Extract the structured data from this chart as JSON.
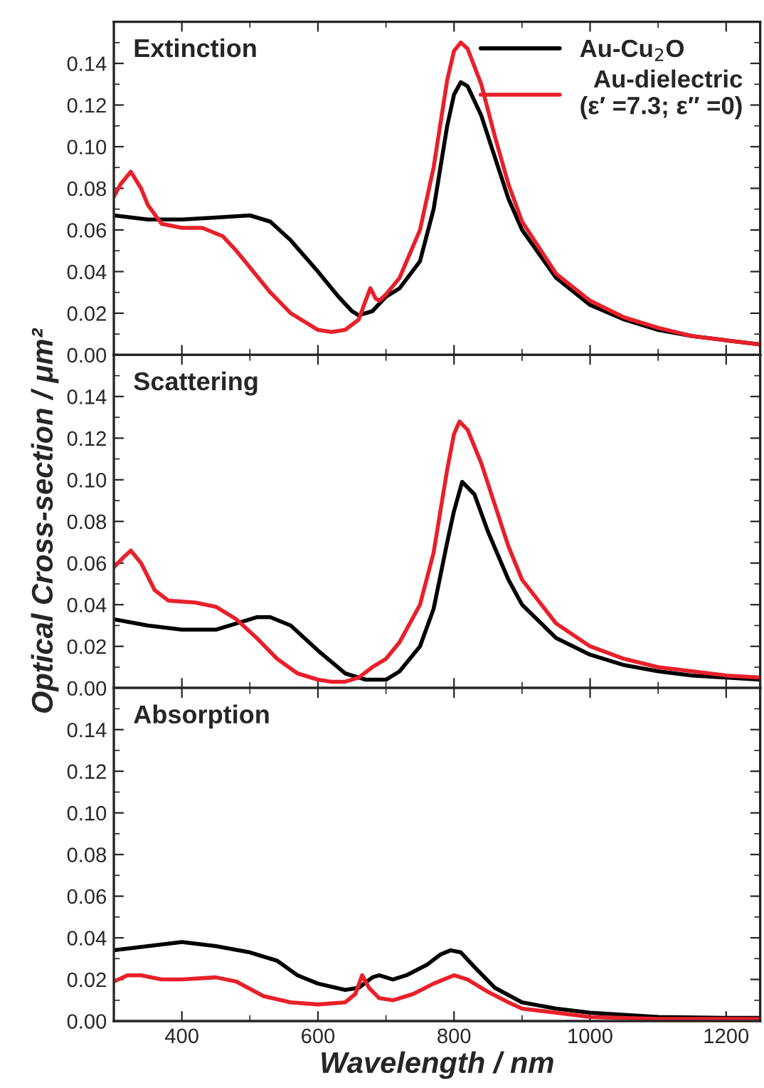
{
  "chart_data": [
    {
      "type": "line",
      "title": "Extinction",
      "xlim": [
        300,
        1250
      ],
      "xticks": [
        400,
        600,
        800,
        1000,
        1200
      ],
      "ylim": [
        0,
        0.16
      ],
      "yticks": [
        {
          "value": 0,
          "label": "0.00"
        },
        {
          "value": 0.02,
          "label": "0.02"
        },
        {
          "value": 0.04,
          "label": "0.04"
        },
        {
          "value": 0.06,
          "label": "0.06"
        },
        {
          "value": 0.08,
          "label": "0.08"
        },
        {
          "value": 0.1,
          "label": "0.10"
        },
        {
          "value": 0.12,
          "label": "0.12"
        },
        {
          "value": 0.14,
          "label": "0.14"
        }
      ],
      "tick_labels": "y",
      "grid": false,
      "legend": "top right",
      "line_style": "solid",
      "marker": "none",
      "series": [
        {
          "name": "Au-Cu$_{2}$O",
          "color": "#000000",
          "x": [
            300,
            350,
            400,
            450,
            500,
            530,
            560,
            600,
            630,
            650,
            660,
            680,
            700,
            720,
            750,
            770,
            790,
            800,
            810,
            820,
            840,
            860,
            880,
            900,
            950,
            1000,
            1050,
            1100,
            1150,
            1200,
            1250
          ],
          "values": [
            0.067,
            0.065,
            0.065,
            0.066,
            0.067,
            0.064,
            0.055,
            0.04,
            0.028,
            0.021,
            0.019,
            0.021,
            0.028,
            0.032,
            0.045,
            0.07,
            0.11,
            0.125,
            0.131,
            0.129,
            0.115,
            0.095,
            0.075,
            0.06,
            0.037,
            0.024,
            0.017,
            0.012,
            0.009,
            0.007,
            0.005
          ]
        },
        {
          "name": "Au-dielectric\n(ε′ =7.3; ε″ =0)",
          "color": "#e8202a",
          "x": [
            300,
            310,
            325,
            340,
            350,
            370,
            400,
            430,
            460,
            480,
            500,
            530,
            560,
            600,
            620,
            640,
            660,
            670,
            677,
            685,
            690,
            700,
            720,
            750,
            770,
            790,
            800,
            810,
            820,
            840,
            860,
            880,
            900,
            950,
            1000,
            1050,
            1100,
            1150,
            1200,
            1250
          ],
          "values": [
            0.076,
            0.082,
            0.088,
            0.08,
            0.072,
            0.063,
            0.061,
            0.061,
            0.057,
            0.05,
            0.042,
            0.03,
            0.02,
            0.012,
            0.011,
            0.012,
            0.017,
            0.026,
            0.032,
            0.027,
            0.026,
            0.029,
            0.037,
            0.06,
            0.09,
            0.132,
            0.146,
            0.15,
            0.147,
            0.13,
            0.105,
            0.082,
            0.064,
            0.039,
            0.026,
            0.018,
            0.013,
            0.009,
            0.007,
            0.005
          ]
        }
      ]
    },
    {
      "type": "line",
      "title": "Scattering",
      "ylabel": "Optical Cross-section / μm²",
      "xlim": [
        300,
        1250
      ],
      "xticks": [
        400,
        600,
        800,
        1000,
        1200
      ],
      "ylim": [
        0,
        0.16
      ],
      "yticks": [
        {
          "value": 0,
          "label": "0.00"
        },
        {
          "value": 0.02,
          "label": "0.02"
        },
        {
          "value": 0.04,
          "label": "0.04"
        },
        {
          "value": 0.06,
          "label": "0.06"
        },
        {
          "value": 0.08,
          "label": "0.08"
        },
        {
          "value": 0.1,
          "label": "0.10"
        },
        {
          "value": 0.12,
          "label": "0.12"
        },
        {
          "value": 0.14,
          "label": "0.14"
        }
      ],
      "tick_labels": "y",
      "grid": false,
      "line_style": "solid",
      "marker": "none",
      "series": [
        {
          "color": "#000000",
          "x": [
            300,
            350,
            400,
            450,
            480,
            510,
            530,
            560,
            600,
            640,
            670,
            700,
            720,
            750,
            770,
            790,
            800,
            812,
            830,
            850,
            880,
            900,
            950,
            1000,
            1050,
            1100,
            1150,
            1200,
            1250
          ],
          "values": [
            0.033,
            0.03,
            0.028,
            0.028,
            0.031,
            0.034,
            0.034,
            0.03,
            0.018,
            0.007,
            0.004,
            0.004,
            0.008,
            0.02,
            0.038,
            0.07,
            0.085,
            0.099,
            0.093,
            0.075,
            0.052,
            0.04,
            0.024,
            0.016,
            0.011,
            0.008,
            0.006,
            0.005,
            0.004
          ]
        },
        {
          "color": "#e8202a",
          "x": [
            300,
            315,
            325,
            340,
            360,
            380,
            420,
            450,
            480,
            510,
            540,
            570,
            600,
            620,
            640,
            660,
            680,
            700,
            720,
            750,
            770,
            790,
            800,
            808,
            820,
            840,
            860,
            880,
            900,
            950,
            1000,
            1050,
            1100,
            1150,
            1200,
            1250
          ],
          "values": [
            0.058,
            0.063,
            0.066,
            0.06,
            0.047,
            0.042,
            0.041,
            0.039,
            0.033,
            0.024,
            0.014,
            0.007,
            0.004,
            0.003,
            0.003,
            0.005,
            0.01,
            0.014,
            0.022,
            0.04,
            0.065,
            0.105,
            0.122,
            0.128,
            0.124,
            0.108,
            0.088,
            0.068,
            0.052,
            0.031,
            0.02,
            0.014,
            0.01,
            0.008,
            0.006,
            0.005
          ]
        }
      ]
    },
    {
      "type": "line",
      "title": "Absorption",
      "xlabel": "Wavelength / nm",
      "xlim": [
        300,
        1250
      ],
      "xticks": [
        400,
        600,
        800,
        1000,
        1200
      ],
      "ylim": [
        0,
        0.16
      ],
      "yticks": [
        {
          "value": 0,
          "label": "0.00"
        },
        {
          "value": 0.02,
          "label": "0.02"
        },
        {
          "value": 0.04,
          "label": "0.04"
        },
        {
          "value": 0.06,
          "label": "0.06"
        },
        {
          "value": 0.08,
          "label": "0.08"
        },
        {
          "value": 0.1,
          "label": "0.10"
        },
        {
          "value": 0.12,
          "label": "0.12"
        },
        {
          "value": 0.14,
          "label": "0.14"
        }
      ],
      "grid": false,
      "line_style": "solid",
      "marker": "none",
      "series": [
        {
          "color": "#000000",
          "x": [
            300,
            350,
            400,
            450,
            500,
            540,
            570,
            600,
            640,
            660,
            680,
            690,
            710,
            730,
            760,
            780,
            795,
            810,
            830,
            860,
            900,
            950,
            1000,
            1100,
            1200,
            1250
          ],
          "values": [
            0.034,
            0.036,
            0.038,
            0.036,
            0.033,
            0.029,
            0.022,
            0.018,
            0.015,
            0.016,
            0.021,
            0.022,
            0.02,
            0.022,
            0.027,
            0.032,
            0.034,
            0.033,
            0.026,
            0.016,
            0.009,
            0.006,
            0.004,
            0.002,
            0.0015,
            0.0015
          ]
        },
        {
          "color": "#e8202a",
          "x": [
            300,
            320,
            340,
            370,
            400,
            450,
            480,
            520,
            560,
            600,
            640,
            655,
            665,
            675,
            690,
            710,
            740,
            770,
            800,
            820,
            850,
            880,
            900,
            950,
            1000,
            1100,
            1200,
            1250
          ],
          "values": [
            0.019,
            0.022,
            0.022,
            0.02,
            0.02,
            0.021,
            0.019,
            0.012,
            0.009,
            0.008,
            0.009,
            0.013,
            0.022,
            0.016,
            0.011,
            0.01,
            0.013,
            0.018,
            0.022,
            0.02,
            0.014,
            0.009,
            0.006,
            0.004,
            0.002,
            0.001,
            0.001,
            0.001
          ]
        }
      ]
    }
  ]
}
